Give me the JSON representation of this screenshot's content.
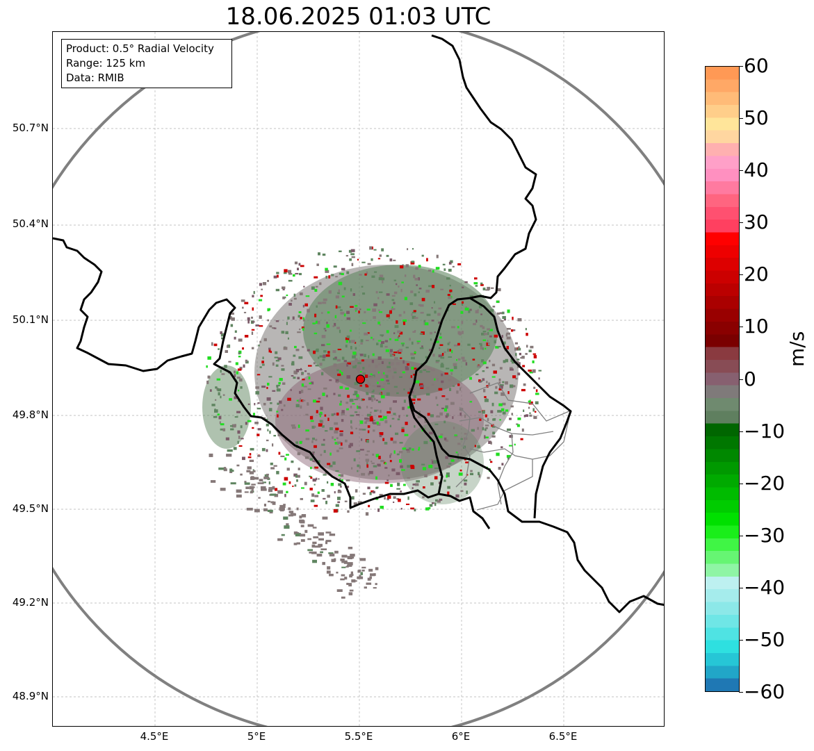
{
  "title": "18.06.2025 01:03 UTC",
  "info": {
    "product": "Product: 0.5° Radial Velocity",
    "range": "Range: 125 km",
    "data": "Data: RMIB"
  },
  "axes": {
    "lat_labels": [
      "50.7°N",
      "50.4°N",
      "50.1°N",
      "49.8°N",
      "49.5°N",
      "49.2°N",
      "48.9°N"
    ],
    "lon_labels": [
      "4.5°E",
      "5°E",
      "5.5°E",
      "6°E",
      "6.5°E"
    ]
  },
  "colorbar": {
    "unit": "m/s",
    "tick_labels": [
      "60",
      "50",
      "40",
      "30",
      "20",
      "10",
      "0",
      "−10",
      "−20",
      "−30",
      "−40",
      "−50",
      "−60"
    ],
    "range": [
      -60,
      60
    ],
    "colors": [
      "#1f78b4",
      "#21a6c8",
      "#26c6d6",
      "#2ee0e0",
      "#4fe3e3",
      "#6fe6e6",
      "#8ce8e8",
      "#a5ecec",
      "#bdf0f0",
      "#8ff5a5",
      "#66f573",
      "#40f545",
      "#1aee1a",
      "#00e000",
      "#00cc00",
      "#00bb00",
      "#00aa00",
      "#009900",
      "#008800",
      "#007700",
      "#006600",
      "#5f7f5f",
      "#6f8a6f",
      "#7f7a7a",
      "#876070",
      "#884c55",
      "#8a3a40",
      "#7a0000",
      "#8a0000",
      "#990000",
      "#aa0000",
      "#bb0000",
      "#cc0000",
      "#dd0000",
      "#ee0000",
      "#ff0000",
      "#ff4060",
      "#ff5070",
      "#ff6580",
      "#ff7aa0",
      "#ff90c0",
      "#ffa0c8",
      "#ffb0b0",
      "#ffd6a0",
      "#ffe59a",
      "#ffce8a",
      "#ffbb78",
      "#ffa866",
      "#ff9955"
    ]
  },
  "radar_site": {
    "lat": 49.914,
    "lon": 5.505,
    "color": "#e00000"
  },
  "range_circle_color": "#808080",
  "colors": {
    "border": "#000000",
    "region_border": "#808080",
    "echo_gray": "#857878",
    "echo_green": "#5f8560",
    "echo_bright_green": "#22dd22",
    "echo_red": "#cc0000"
  }
}
